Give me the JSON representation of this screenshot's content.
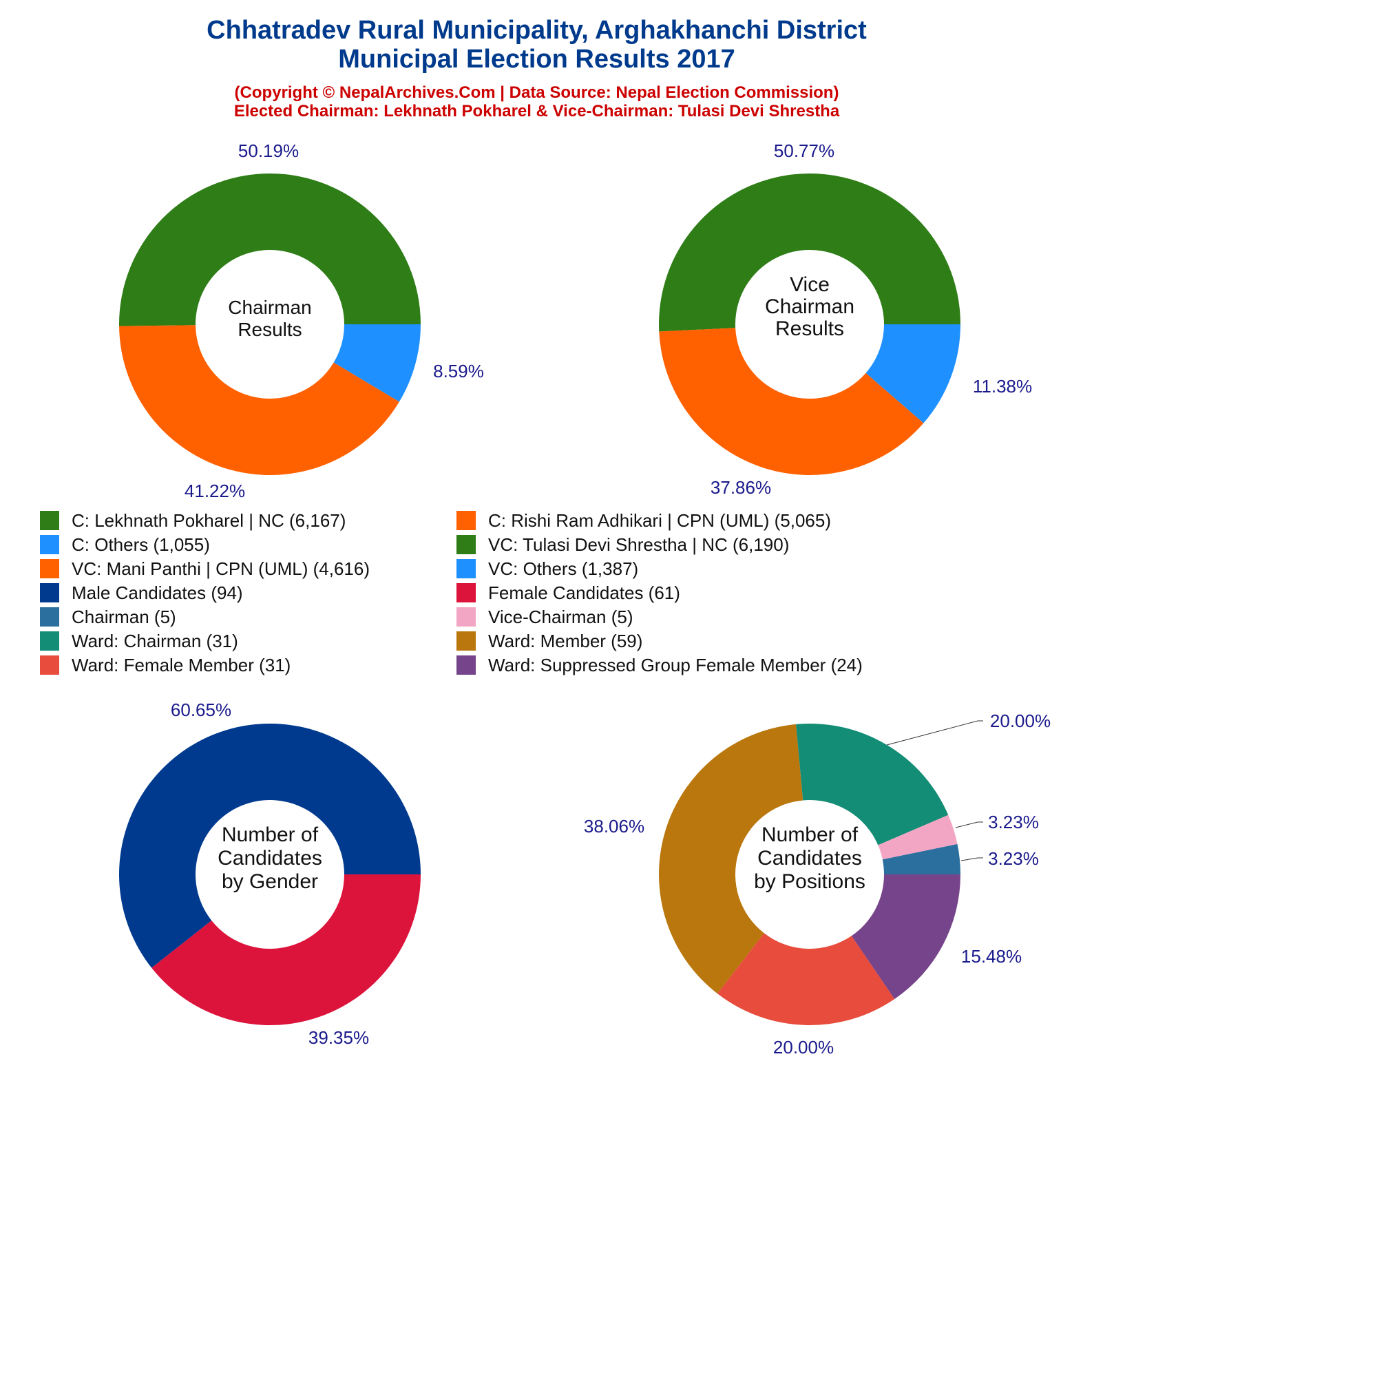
{
  "header": {
    "title_line1": "Chhatradev Rural Municipality, Arghakhanchi District",
    "title_line2": "Municipal Election Results 2017",
    "subtitle_line1": "(Copyright © NepalArchives.Com | Data Source: Nepal Election Commission)",
    "subtitle_line2": "Elected Chairman: Lekhnath Pokharel & Vice-Chairman: Tulasi Devi Shrestha"
  },
  "legend": [
    {
      "label": "C: Lekhnath Pokharel | NC (6,167)",
      "color": "#2e7d17"
    },
    {
      "label": "C: Rishi Ram Adhikari | CPN (UML) (5,065)",
      "color": "#ff6000"
    },
    {
      "label": "C: Others (1,055)",
      "color": "#1e90ff"
    },
    {
      "label": "VC: Tulasi Devi Shrestha | NC (6,190)",
      "color": "#2e7d17"
    },
    {
      "label": "VC: Mani Panthi | CPN (UML) (4,616)",
      "color": "#ff6000"
    },
    {
      "label": "VC: Others (1,387)",
      "color": "#1e90ff"
    },
    {
      "label": "Male Candidates (94)",
      "color": "#003a8f"
    },
    {
      "label": "Female Candidates (61)",
      "color": "#dc143c"
    },
    {
      "label": "Chairman (5)",
      "color": "#2a6f9e"
    },
    {
      "label": "Vice-Chairman (5)",
      "color": "#f3a6c3"
    },
    {
      "label": "Ward: Chairman (31)",
      "color": "#138d75"
    },
    {
      "label": "Ward: Member (59)",
      "color": "#b9770e"
    },
    {
      "label": "Ward: Female Member (31)",
      "color": "#e74c3c"
    },
    {
      "label": "Ward: Suppressed Group Female Member (24)",
      "color": "#76448a"
    }
  ],
  "chart_data": [
    {
      "type": "pie",
      "variant": "donut",
      "center_label": [
        "Chairman",
        "Results"
      ],
      "slices": [
        {
          "name": "C: Lekhnath Pokharel | NC",
          "value": 6167,
          "label": "50.19%",
          "color": "#2e7d17"
        },
        {
          "name": "C: Others",
          "value": 1055,
          "label": "8.59%",
          "color": "#1e90ff"
        },
        {
          "name": "C: Rishi Ram Adhikari | CPN (UML)",
          "value": 5065,
          "label": "41.22%",
          "color": "#ff6000"
        }
      ]
    },
    {
      "type": "pie",
      "variant": "donut",
      "center_label": [
        "Vice",
        "Chairman",
        "Results"
      ],
      "slices": [
        {
          "name": "VC: Tulasi Devi Shrestha | NC",
          "value": 6190,
          "label": "50.77%",
          "color": "#2e7d17"
        },
        {
          "name": "VC: Others",
          "value": 1387,
          "label": "11.38%",
          "color": "#1e90ff"
        },
        {
          "name": "VC: Mani Panthi | CPN (UML)",
          "value": 4616,
          "label": "37.86%",
          "color": "#ff6000"
        }
      ]
    },
    {
      "type": "pie",
      "variant": "donut",
      "center_label": [
        "Number of",
        "Candidates",
        "by Gender"
      ],
      "slices": [
        {
          "name": "Male Candidates",
          "value": 94,
          "label": "60.65%",
          "color": "#003a8f"
        },
        {
          "name": "Female Candidates",
          "value": 61,
          "label": "39.35%",
          "color": "#dc143c"
        }
      ]
    },
    {
      "type": "pie",
      "variant": "donut",
      "center_label": [
        "Number of",
        "Candidates",
        "by Positions"
      ],
      "slices": [
        {
          "name": "Chairman",
          "value": 5,
          "label": "3.23%",
          "color": "#2a6f9e"
        },
        {
          "name": "Vice-Chairman",
          "value": 5,
          "label": "3.23%",
          "color": "#f3a6c3"
        },
        {
          "name": "Ward: Chairman",
          "value": 31,
          "label": "20.00%",
          "color": "#138d75"
        },
        {
          "name": "Ward: Member",
          "value": 59,
          "label": "38.06%",
          "color": "#b9770e"
        },
        {
          "name": "Ward: Female Member",
          "value": 31,
          "label": "20.00%",
          "color": "#e74c3c"
        },
        {
          "name": "Ward: Suppressed Group Female Member",
          "value": 24,
          "label": "15.48%",
          "color": "#76448a"
        }
      ]
    }
  ]
}
